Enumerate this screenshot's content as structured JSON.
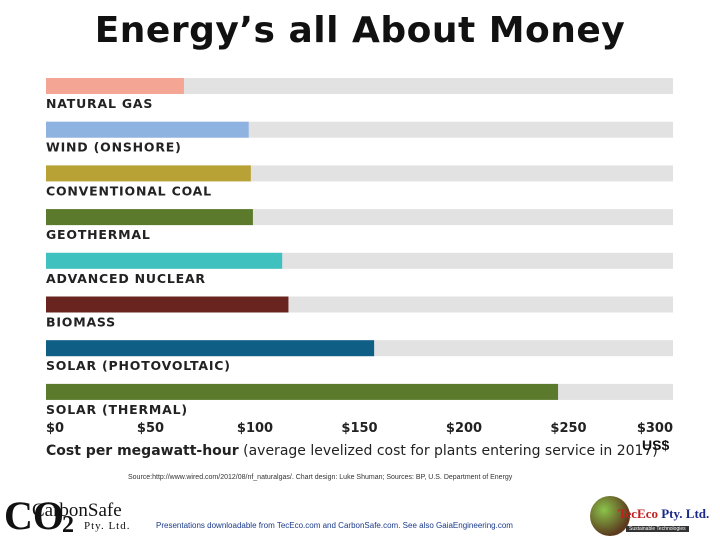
{
  "title": "Energy’s all About Money",
  "chart_data": {
    "type": "bar",
    "orientation": "horizontal",
    "categories": [
      "NATURAL GAS",
      "WIND (ONSHORE)",
      "CONVENTIONAL COAL",
      "GEOTHERMAL",
      "ADVANCED NUCLEAR",
      "BIOMASS",
      "SOLAR (PHOTOVOLTAIC)",
      "SOLAR (THERMAL)"
    ],
    "values": [
      66,
      97,
      98,
      99,
      113,
      116,
      157,
      245
    ],
    "colors": [
      "#f4a594",
      "#8fb3e0",
      "#b8a135",
      "#5c7a2c",
      "#3fc1c0",
      "#6a2420",
      "#0e5e86",
      "#5c7a2c"
    ],
    "track_color": "#e2e2e2",
    "xlim": [
      0,
      300
    ],
    "xticks": [
      "$0",
      "$50",
      "$100",
      "$150",
      "$200",
      "$250",
      "$300"
    ],
    "xlabel_bold": "Cost per megawatt-hour",
    "xlabel_rest": " (average levelized cost for plants entering service in 2017)",
    "unit": "US$",
    "grid": false,
    "legend": false
  },
  "source": "Source:http://www.wired.com/2012/08/nf_naturalgas/. Chart design: Luke Shuman; Sources: BP, U.S. Department of Energy",
  "footer": "Presentations downloadable from TecEco.com and CarbonSafe.com. See also GaiaEngineering.com",
  "logo_left": {
    "co": "CO",
    "two": "2",
    "name": "CarbonSafe",
    "pty": "Pty. Ltd."
  },
  "logo_right": {
    "tec": "Tec",
    "eco": "Eco",
    "pty": " Pty. Ltd.",
    "tag": "Sustainable Technologies"
  }
}
